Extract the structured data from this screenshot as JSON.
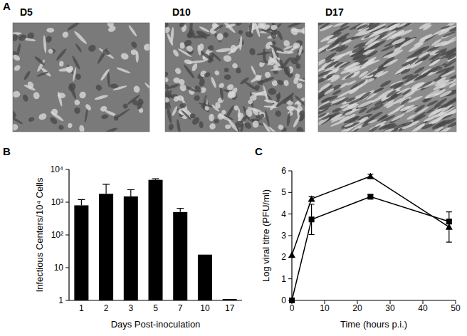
{
  "chart_data": [
    {
      "type": "image",
      "title": "A",
      "categories": [
        "D5",
        "D10",
        "D17"
      ]
    },
    {
      "type": "bar",
      "title": "B",
      "x_label": "Days Post-inoculation",
      "y_label": "Infectious Centers/10⁴ Cells",
      "categories": [
        "1",
        "2",
        "3",
        "5",
        "7",
        "10",
        "17"
      ],
      "values": [
        800,
        1800,
        1500,
        4800,
        500,
        25,
        1.1
      ],
      "errors": [
        400,
        1700,
        900,
        400,
        150,
        null,
        null
      ],
      "color": "#000000",
      "log": "y",
      "ylim": [
        1,
        10000
      ],
      "yticks": [
        1,
        10,
        {
          "value": 100,
          "label": "10²"
        },
        {
          "value": 1000,
          "label": "10³"
        },
        {
          "value": 10000,
          "label": "10⁴"
        }
      ]
    },
    {
      "type": "line",
      "title": "C",
      "x_label": "Time (hours p.i.)",
      "y_label": "Log viral titre (PFU/ml)",
      "x": [
        0,
        6,
        24,
        48
      ],
      "series": [
        {
          "color": "#000000",
          "marker": "triangle",
          "values": [
            2.1,
            4.7,
            5.75,
            3.4
          ],
          "errors": [
            0,
            0.1,
            0.1,
            0.7
          ]
        },
        {
          "color": "#000000",
          "marker": "square",
          "values": [
            0,
            3.75,
            4.8,
            3.65
          ],
          "errors": [
            0,
            0.7,
            0.1,
            0.1
          ]
        }
      ],
      "xlim": [
        0,
        50
      ],
      "ylim": [
        0,
        6
      ],
      "xticks": [
        0,
        10,
        20,
        30,
        40,
        50
      ],
      "yticks": [
        0,
        1,
        2,
        3,
        4,
        5,
        6
      ]
    }
  ]
}
